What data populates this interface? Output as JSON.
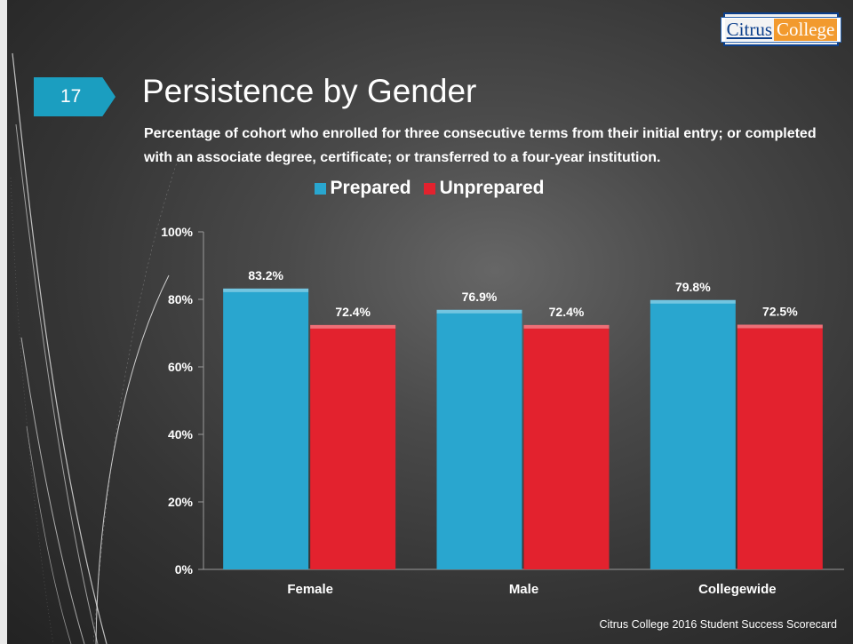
{
  "slide": {
    "number": "17",
    "title": "Persistence by Gender",
    "subtitle": "Percentage of cohort who enrolled for three consecutive terms from their initial entry; or completed with an associate degree, certificate; or transferred to a four-year institution.",
    "footer": "Citrus College 2016 Student Success Scorecard"
  },
  "logo": {
    "part1": "Citrus",
    "part2": "College"
  },
  "colors": {
    "prepared": "#29a6cf",
    "unprepared": "#e3222e",
    "badge": "#1b9ec0"
  },
  "chart_data": {
    "type": "bar",
    "title": "",
    "categories": [
      "Female",
      "Male",
      "Collegewide"
    ],
    "series": [
      {
        "name": "Prepared",
        "values": [
          83.2,
          76.9,
          79.8
        ],
        "labels": [
          "83.2%",
          "76.9%",
          "79.8%"
        ]
      },
      {
        "name": "Unprepared",
        "values": [
          72.4,
          72.4,
          72.5
        ],
        "labels": [
          "72.4%",
          "72.4%",
          "72.5%"
        ]
      }
    ],
    "ylim": [
      0,
      100
    ],
    "yticks": [
      0,
      20,
      40,
      60,
      80,
      100
    ],
    "ytick_labels": [
      "0%",
      "20%",
      "40%",
      "60%",
      "80%",
      "100%"
    ],
    "xlabel": "",
    "ylabel": "",
    "legend_position": "top-center",
    "grid": false
  }
}
